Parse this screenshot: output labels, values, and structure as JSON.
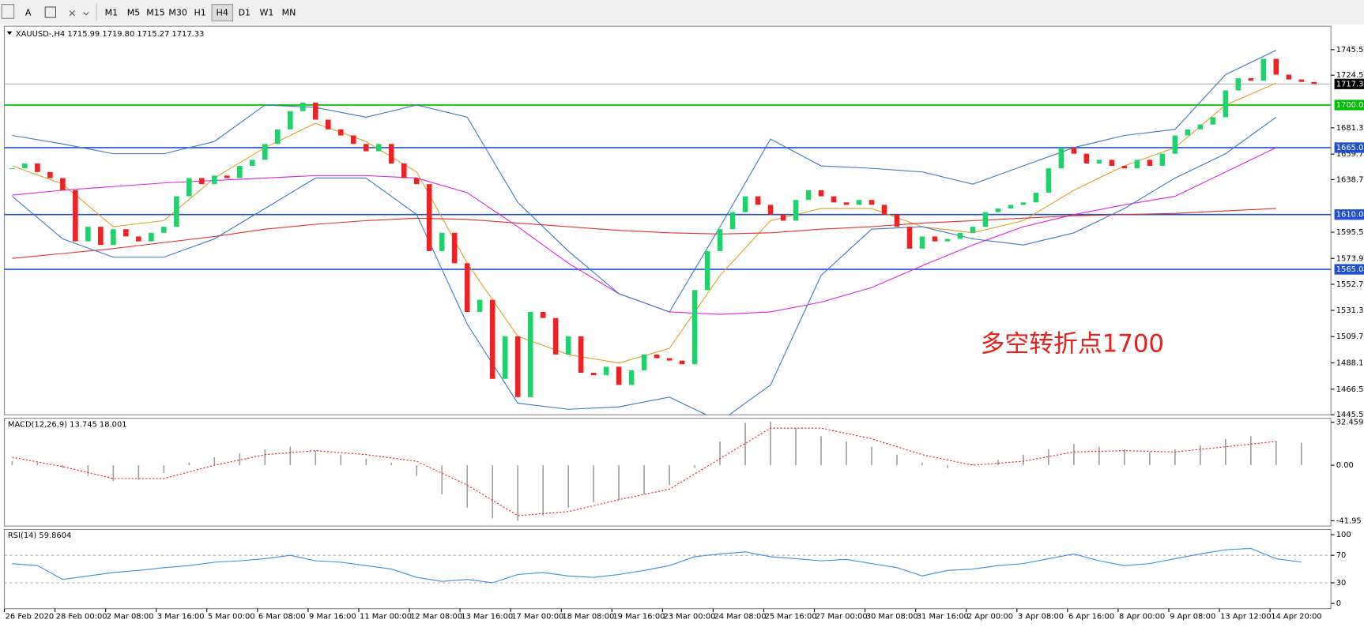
{
  "toolbar": {
    "timeframes": [
      "M1",
      "M5",
      "M15",
      "M30",
      "H1",
      "H4",
      "D1",
      "W1",
      "MN"
    ],
    "active_timeframe": 5
  },
  "chart_data": {
    "type": "candlestick",
    "title": "XAUUSD-,H4  1715.99 1719.80 1715.27 1717.33",
    "annotation": "多空转折点1700",
    "categories": [
      "26 Feb 2020",
      "28 Feb 00:00",
      "2 Mar 08:00",
      "3 Mar 16:00",
      "5 Mar 00:00",
      "6 Mar 08:00",
      "9 Mar 16:00",
      "11 Mar 00:00",
      "12 Mar 08:00",
      "13 Mar 16:00",
      "17 Mar 00:00",
      "18 Mar 08:00",
      "19 Mar 16:00",
      "23 Mar 00:00",
      "24 Mar 08:00",
      "25 Mar 16:00",
      "27 Mar 00:00",
      "30 Mar 08:00",
      "31 Mar 16:00",
      "2 Apr 00:00",
      "3 Apr 08:00",
      "6 Apr 16:00",
      "8 Apr 00:00",
      "9 Apr 08:00",
      "13 Apr 12:00",
      "14 Apr 20:00"
    ],
    "closes": [
      1648,
      1652,
      1645,
      1640,
      1630,
      1588,
      1600,
      1585,
      1598,
      1592,
      1588,
      1595,
      1600,
      1625,
      1640,
      1635,
      1642,
      1640,
      1650,
      1655,
      1668,
      1680,
      1695,
      1702,
      1688,
      1680,
      1675,
      1668,
      1662,
      1668,
      1652,
      1640,
      1635,
      1580,
      1595,
      1570,
      1530,
      1540,
      1475,
      1510,
      1460,
      1530,
      1525,
      1495,
      1510,
      1480,
      1478,
      1485,
      1470,
      1482,
      1495,
      1492,
      1490,
      1487,
      1548,
      1580,
      1598,
      1612,
      1625,
      1618,
      1610,
      1605,
      1622,
      1630,
      1625,
      1620,
      1618,
      1622,
      1618,
      1610,
      1600,
      1582,
      1592,
      1588,
      1590,
      1595,
      1600,
      1612,
      1615,
      1618,
      1620,
      1628,
      1648,
      1665,
      1660,
      1652,
      1655,
      1650,
      1648,
      1655,
      1650,
      1660,
      1675,
      1680,
      1684,
      1690,
      1712,
      1722,
      1720,
      1738,
      1725,
      1721,
      1719,
      1717.33
    ],
    "up_color": "#1fd36c",
    "down_color": "#ee2222",
    "series": [
      {
        "name": "MA fast",
        "color": "#e0a020",
        "values": [
          1650,
          1635,
          1600,
          1605,
          1640,
          1665,
          1685,
          1670,
          1645,
          1570,
          1510,
          1495,
          1488,
          1500,
          1560,
          1605,
          1615,
          1615,
          1600,
          1595,
          1605,
          1630,
          1650,
          1665,
          1700,
          1718
        ]
      },
      {
        "name": "MA mid",
        "color": "#e020e0",
        "values": [
          1626,
          1630,
          1633,
          1636,
          1638,
          1640,
          1642,
          1642,
          1640,
          1628,
          1600,
          1570,
          1545,
          1530,
          1528,
          1530,
          1538,
          1550,
          1568,
          1585,
          1600,
          1610,
          1618,
          1625,
          1645,
          1665
        ]
      },
      {
        "name": "MA slow",
        "color": "#e03030",
        "values": [
          1574,
          1578,
          1582,
          1587,
          1592,
          1598,
          1602,
          1605,
          1607,
          1606,
          1603,
          1600,
          1597,
          1595,
          1594,
          1595,
          1598,
          1600,
          1603,
          1605,
          1607,
          1609,
          1610,
          1611,
          1613,
          1615
        ]
      },
      {
        "name": "BB upper",
        "color": "#3a78c0",
        "values": [
          1675,
          1668,
          1660,
          1660,
          1670,
          1700,
          1698,
          1690,
          1700,
          1690,
          1620,
          1580,
          1545,
          1530,
          1600,
          1672,
          1650,
          1648,
          1645,
          1635,
          1650,
          1665,
          1675,
          1680,
          1725,
          1745
        ]
      },
      {
        "name": "BB lower",
        "color": "#3a78c0",
        "values": [
          1625,
          1590,
          1575,
          1575,
          1590,
          1615,
          1640,
          1640,
          1610,
          1520,
          1455,
          1450,
          1452,
          1460,
          1440,
          1470,
          1560,
          1598,
          1600,
          1590,
          1585,
          1595,
          1615,
          1640,
          1660,
          1690
        ]
      }
    ],
    "levels": [
      {
        "value": 1700,
        "label": "1700.00",
        "color": "#00c000"
      },
      {
        "value": 1665,
        "label": "1665.00",
        "color": "#2050d0"
      },
      {
        "value": 1610,
        "label": "1610.00",
        "color": "#2050d0"
      },
      {
        "value": 1565,
        "label": "1565.00",
        "color": "#2050d0"
      }
    ],
    "current_price": {
      "value": 1717.33,
      "label": "1717.33"
    },
    "ylim": [
      1445.5,
      1764.8
    ],
    "yticks": [
      {
        "value": 1745.5,
        "label": "1745.50"
      },
      {
        "value": 1724.5,
        "label": "1724.50"
      },
      {
        "value": 1681.3,
        "label": "1681.30"
      },
      {
        "value": 1659.7,
        "label": "1659.70"
      },
      {
        "value": 1638.7,
        "label": "1638.70"
      },
      {
        "value": 1595.5,
        "label": "1595.50"
      },
      {
        "value": 1573.9,
        "label": "1573.90"
      },
      {
        "value": 1552.7,
        "label": "1552.70"
      },
      {
        "value": 1531.3,
        "label": "1531.30"
      },
      {
        "value": 1509.7,
        "label": "1509.70"
      },
      {
        "value": 1488.1,
        "label": "1488.10"
      },
      {
        "value": 1466.5,
        "label": "1466.50"
      },
      {
        "value": 1445.5,
        "label": "1445.50"
      }
    ],
    "macd": {
      "title": "MACD(12,26,9) 13.745 18.001",
      "histogram": [
        3,
        2,
        -2,
        -8,
        -12,
        -11,
        -6,
        2,
        6,
        9,
        12,
        14,
        11,
        8,
        5,
        2,
        -8,
        -22,
        -32,
        -40,
        -42,
        -38,
        -32,
        -28,
        -26,
        -22,
        -15,
        -2,
        18,
        32,
        33,
        28,
        22,
        18,
        14,
        8,
        2,
        -2,
        1,
        4,
        8,
        12,
        16,
        14,
        12,
        10,
        12,
        15,
        20,
        22,
        18,
        17
      ],
      "signal": [
        6,
        -1,
        -10,
        -10,
        0,
        8,
        11,
        8,
        3,
        -15,
        -38,
        -35,
        -26,
        -18,
        5,
        28,
        28,
        20,
        8,
        0,
        3,
        10,
        11,
        10,
        14,
        18
      ],
      "hist_color": "#a0a0a0",
      "signal_color": "#e02020",
      "ylim": [
        -45.9,
        35.5
      ],
      "yticks": [
        {
          "value": 32.459,
          "label": "32.459"
        },
        {
          "value": 0,
          "label": "0.00"
        },
        {
          "value": -41.95,
          "label": "-41.95"
        }
      ]
    },
    "rsi": {
      "title": "RSI(14) 59.8604",
      "color": "#3a8ee0",
      "values": [
        58,
        55,
        35,
        40,
        45,
        48,
        52,
        55,
        60,
        62,
        65,
        70,
        62,
        60,
        55,
        50,
        38,
        32,
        35,
        30,
        42,
        45,
        40,
        38,
        42,
        48,
        55,
        68,
        72,
        75,
        68,
        65,
        62,
        64,
        58,
        52,
        40,
        48,
        50,
        55,
        58,
        65,
        72,
        62,
        55,
        58,
        65,
        72,
        78,
        80,
        65,
        60
      ],
      "ylim": [
        -7.5,
        107.5
      ],
      "yticks": [
        100,
        70,
        30,
        0
      ],
      "levels": [
        70,
        30
      ]
    }
  }
}
